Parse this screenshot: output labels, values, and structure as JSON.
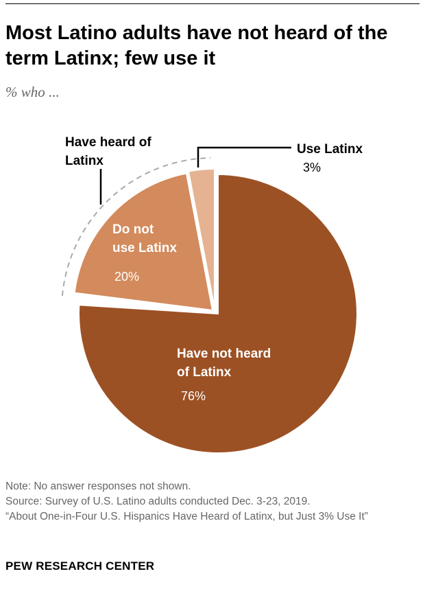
{
  "header": {
    "title": "Most Latino adults have not heard of the term Latinx; few use it",
    "subtitle": "% who ..."
  },
  "chart_data": {
    "type": "pie",
    "slices": [
      {
        "label": "Have not heard of Latinx",
        "value": 76,
        "value_label": "76%",
        "color": "#9c5124"
      },
      {
        "label": "Do not use Latinx",
        "value": 20,
        "value_label": "20%",
        "color": "#d38a5c"
      },
      {
        "label": "Use Latinx",
        "value": 3,
        "value_label": "3%",
        "color": "#e5b391"
      }
    ],
    "group_label": "Have heard of Latinx",
    "group_members": [
      "Do not use Latinx",
      "Use Latinx"
    ],
    "legend": "none"
  },
  "footer": {
    "note": "Note: No answer responses not shown.",
    "source": "Source: Survey of U.S. Latino adults conducted Dec. 3-23, 2019.",
    "report": "“About One-in-Four U.S. Hispanics Have Heard of Latinx, but Just 3% Use It”",
    "brand": "PEW RESEARCH CENTER"
  }
}
